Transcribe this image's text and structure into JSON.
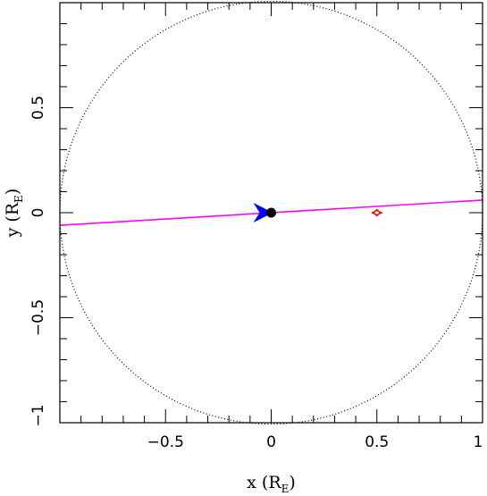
{
  "chart_data": {
    "type": "scatter",
    "title": "",
    "xlabel": "x (R",
    "xlabel_sub": "E",
    "xlabel_close": ")",
    "ylabel": "y (R",
    "ylabel_sub": "E",
    "ylabel_close": ")",
    "xlim": [
      -1,
      1
    ],
    "ylim": [
      -1,
      1
    ],
    "x_ticks": [
      {
        "value": -0.5,
        "label": "−0.5"
      },
      {
        "value": 0,
        "label": "0"
      },
      {
        "value": 0.5,
        "label": "0.5"
      },
      {
        "value": 1,
        "label": "1"
      }
    ],
    "y_ticks": [
      {
        "value": -1,
        "label": "−1"
      },
      {
        "value": -0.5,
        "label": "−0.5"
      },
      {
        "value": 0,
        "label": "0"
      },
      {
        "value": 0.5,
        "label": "0.5"
      }
    ],
    "minor_tick_step": 0.1,
    "einstein_ring": {
      "center": [
        0,
        0
      ],
      "radius": 1,
      "color": "#000000",
      "style": "dotted"
    },
    "source_trajectory": {
      "points": [
        [
          -1,
          -0.06
        ],
        [
          1,
          0.06
        ]
      ],
      "color": "#ff00ff"
    },
    "direction_arrow": {
      "x": 0,
      "y": 0,
      "color": "#0000ff"
    },
    "lens": {
      "x": 0,
      "y": 0,
      "color": "#000000"
    },
    "caustic": {
      "x": 0.5,
      "y": 0.0,
      "color": "#ff0000"
    }
  }
}
